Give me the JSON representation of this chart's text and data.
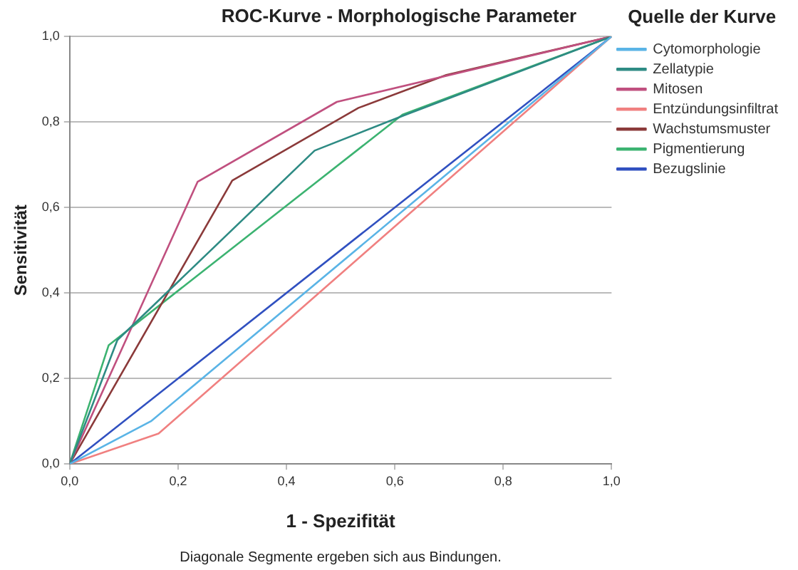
{
  "chart_data": {
    "type": "line",
    "title": "ROC-Kurve - Morphologische Parameter",
    "xlabel": "1 - Spezifität",
    "ylabel": "Sensitivität",
    "legend_title": "Quelle der Kurve",
    "annotations": [
      "Diagonale Segmente ergeben sich aus Bindungen."
    ],
    "xlim": [
      0,
      1
    ],
    "ylim": [
      0,
      1
    ],
    "xticks": [
      {
        "value": 0,
        "label": "0,0"
      },
      {
        "value": 0.2,
        "label": "0,2"
      },
      {
        "value": 0.4,
        "label": "0,4"
      },
      {
        "value": 0.6,
        "label": "0,6"
      },
      {
        "value": 0.8,
        "label": "0,8"
      },
      {
        "value": 1,
        "label": "1,0"
      }
    ],
    "yticks": [
      {
        "value": 0,
        "label": "0,0"
      },
      {
        "value": 0.2,
        "label": "0,2"
      },
      {
        "value": 0.4,
        "label": "0,4"
      },
      {
        "value": 0.6,
        "label": "0,6"
      },
      {
        "value": 0.8,
        "label": "0,8"
      },
      {
        "value": 1,
        "label": "1,0"
      }
    ],
    "grid": "y",
    "legend": "top right",
    "marker": "none",
    "line_style": "solid",
    "series": [
      {
        "name": "Cytomorphologie",
        "color": "#5ab4e6",
        "x": [
          0,
          0.15,
          1
        ],
        "values": [
          0,
          0.1,
          1
        ]
      },
      {
        "name": "Zellatypie",
        "color": "#2e8b84",
        "x": [
          0,
          0.088,
          0.452,
          0.62,
          1
        ],
        "values": [
          0,
          0.29,
          0.733,
          0.817,
          1
        ]
      },
      {
        "name": "Mitosen",
        "color": "#c0507f",
        "x": [
          0,
          0.236,
          0.493,
          1
        ],
        "values": [
          0,
          0.66,
          0.847,
          1
        ]
      },
      {
        "name": "Entzündungsinfiltrat",
        "color": "#f08080",
        "x": [
          0,
          0.164,
          1
        ],
        "values": [
          0,
          0.071,
          1
        ]
      },
      {
        "name": "Wachstumsmuster",
        "color": "#8b3a3a",
        "x": [
          0,
          0.3,
          0.533,
          0.695,
          1
        ],
        "values": [
          0,
          0.663,
          0.833,
          0.91,
          1
        ]
      },
      {
        "name": "Pigmentierung",
        "color": "#3cb371",
        "x": [
          0,
          0.072,
          0.614,
          1
        ],
        "values": [
          0,
          0.278,
          0.817,
          1
        ]
      },
      {
        "name": "Bezugslinie",
        "color": "#3050c0",
        "x": [
          0,
          1
        ],
        "values": [
          0,
          1
        ]
      }
    ]
  }
}
